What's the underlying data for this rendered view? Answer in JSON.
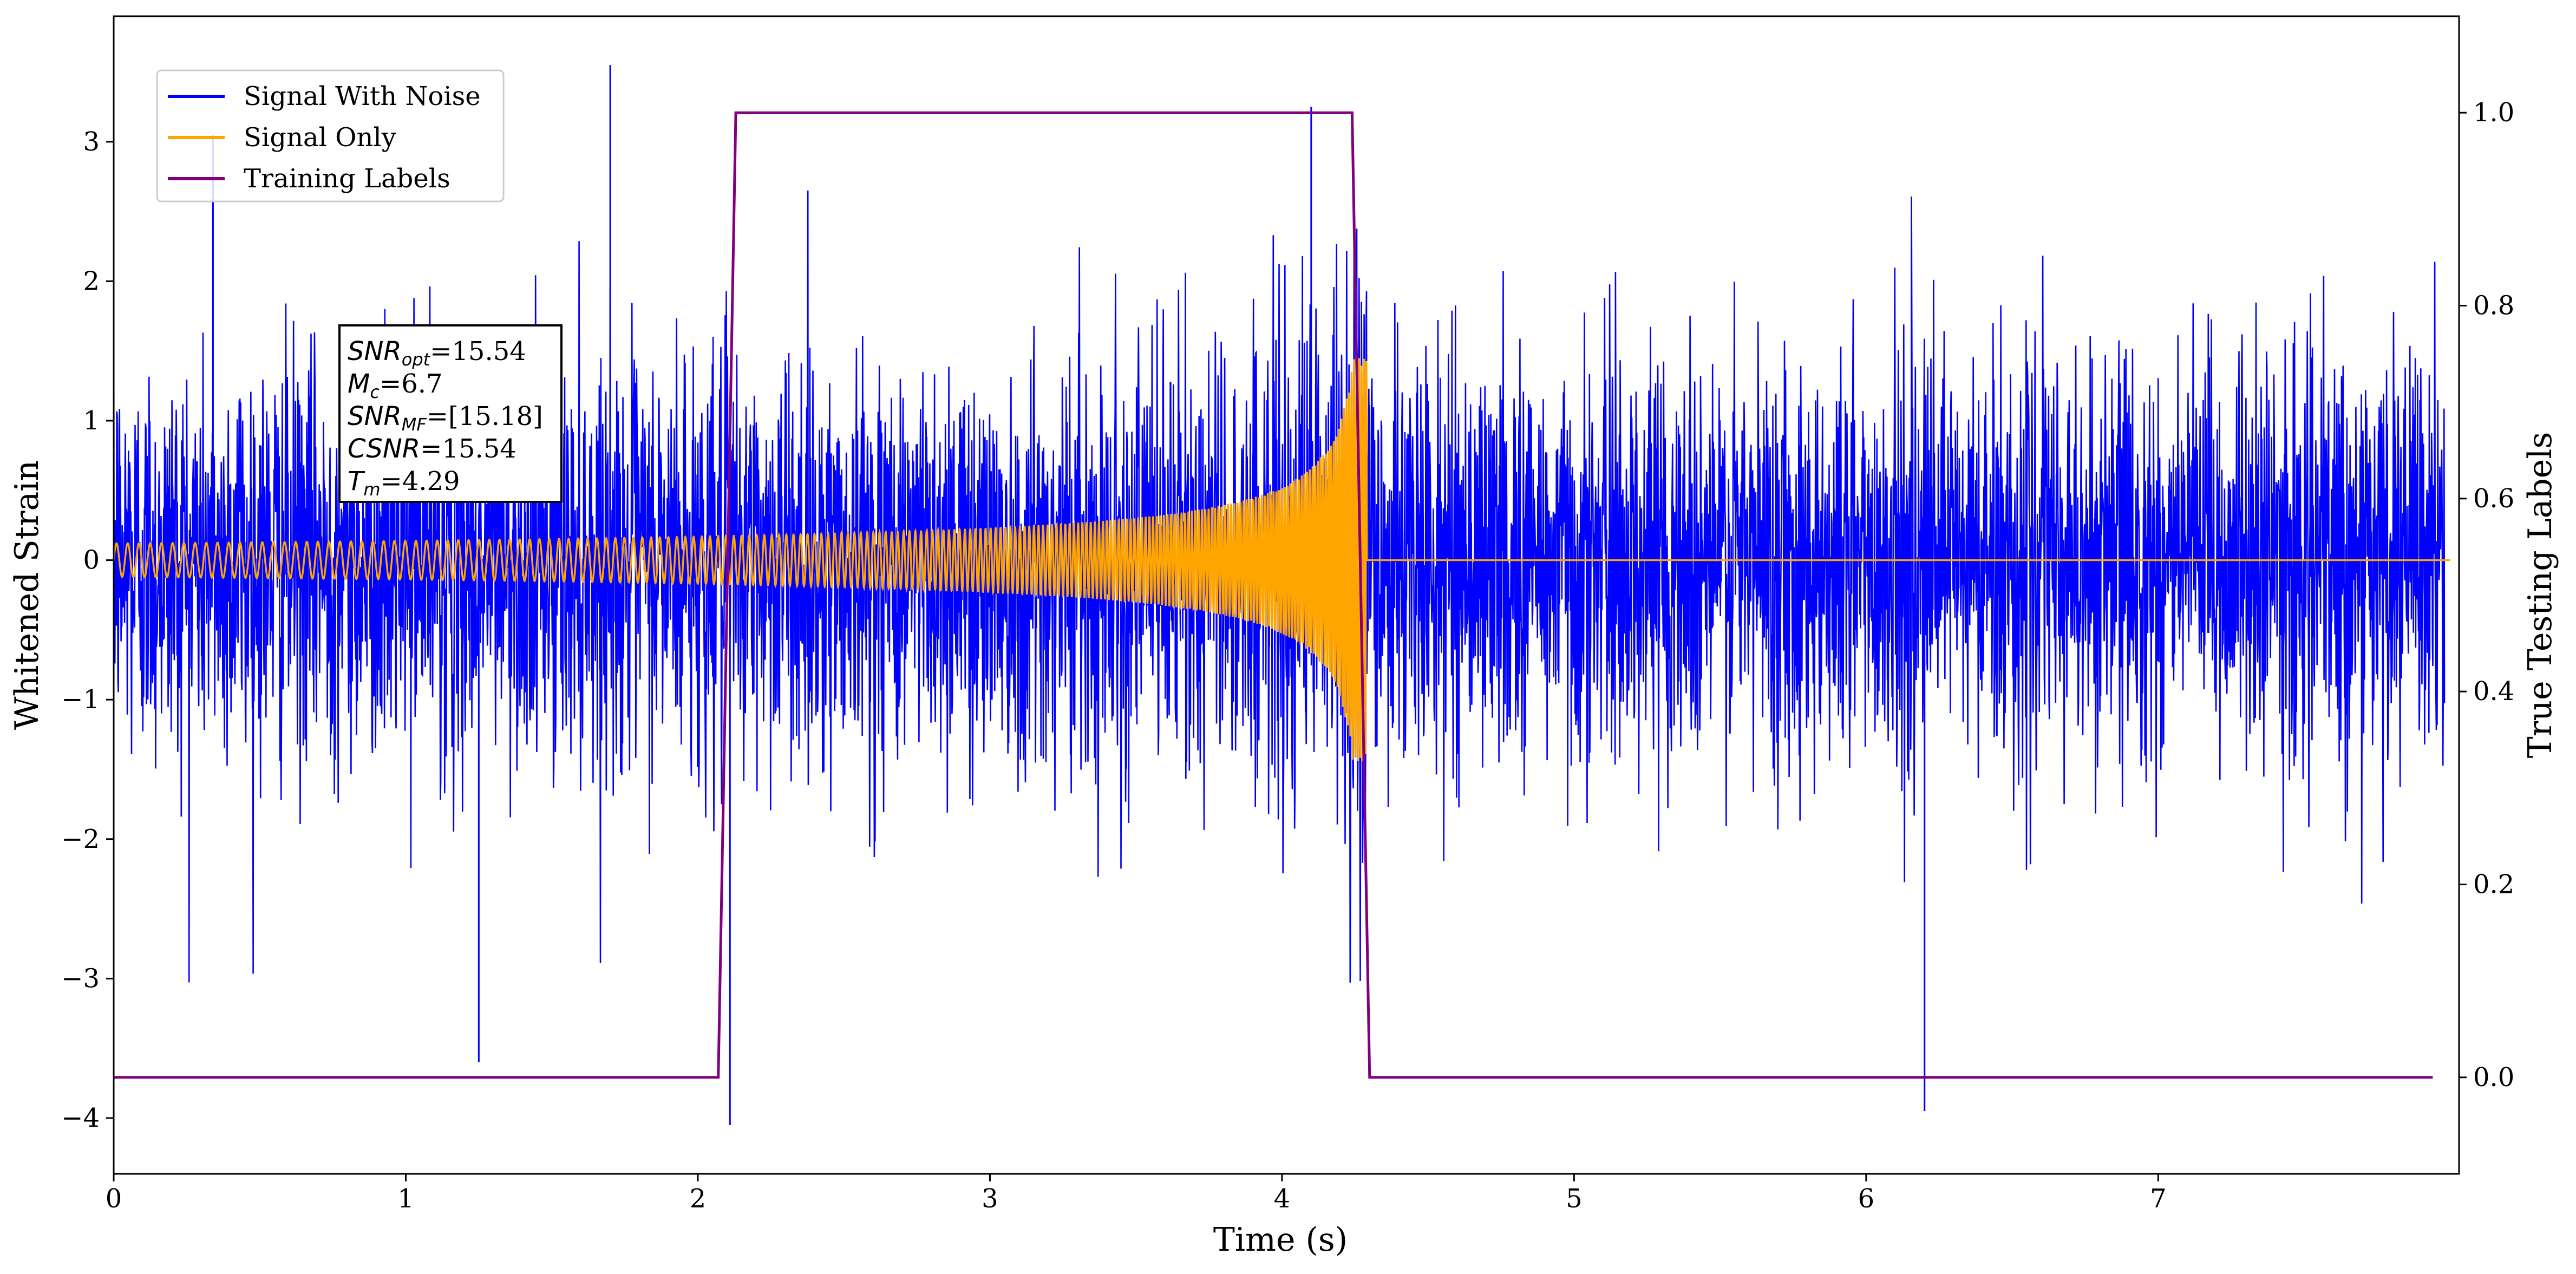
{
  "chart_data": {
    "type": "line",
    "xlabel": "Time (s)",
    "ylabel_left": "Whitened Strain",
    "ylabel_right": "True Testing Labels",
    "xlim": [
      0,
      8.03
    ],
    "ylim_left": [
      -4.4,
      3.9
    ],
    "ylim_right": [
      -0.1,
      1.1
    ],
    "x_ticks": [
      0,
      1,
      2,
      3,
      4,
      5,
      6,
      7
    ],
    "x_tick_labels": [
      "0",
      "1",
      "2",
      "3",
      "4",
      "5",
      "6",
      "7"
    ],
    "y_left_ticks": [
      -4,
      -3,
      -2,
      -1,
      0,
      1,
      2,
      3
    ],
    "y_left_tick_labels": [
      "−4",
      "−3",
      "−2",
      "−1",
      "0",
      "1",
      "2",
      "3"
    ],
    "y_right_ticks": [
      0.0,
      0.2,
      0.4,
      0.6,
      0.8,
      1.0
    ],
    "y_right_tick_labels": [
      "0.0",
      "0.2",
      "0.4",
      "0.6",
      "0.8",
      "1.0"
    ],
    "grid": false,
    "legend_position": "top-left",
    "series": [
      {
        "name": "Signal With Noise",
        "color": "#0000ff",
        "axis": "left",
        "noise_std": 0.72,
        "notable_points": [
          {
            "x": 0.34,
            "y": 3.05
          },
          {
            "x": 1.7,
            "y": 3.55
          },
          {
            "x": 4.1,
            "y": 3.25
          },
          {
            "x": 2.11,
            "y": -4.05
          },
          {
            "x": 6.2,
            "y": -3.95
          },
          {
            "x": 1.25,
            "y": -3.6
          }
        ]
      },
      {
        "name": "Signal Only",
        "color": "#ffa500",
        "axis": "left",
        "start_amplitude": 0.12,
        "start_frequency_hz": 26,
        "end_frequency_hz": 120,
        "merger_time": 4.29,
        "peak_amplitude_positive": 1.45,
        "peak_amplitude_negative": -1.2
      },
      {
        "name": "Training Labels",
        "color": "#800080",
        "axis": "right",
        "x": [
          0,
          2.07,
          2.13,
          4.24,
          4.3,
          7.94
        ],
        "y": [
          0,
          0,
          1,
          1,
          0,
          0
        ]
      }
    ],
    "annotation": {
      "lines": [
        {
          "var": "SNR",
          "sub": "opt",
          "value": "=15.54"
        },
        {
          "var": "M",
          "sub": "c",
          "value": "=6.7"
        },
        {
          "var": "SNR",
          "sub": "MF",
          "value": "=[15.18]"
        },
        {
          "var": "CSNR",
          "sub": "",
          "value": "=15.54"
        },
        {
          "var": "T",
          "sub": "m",
          "value": "=4.29"
        }
      ]
    }
  }
}
